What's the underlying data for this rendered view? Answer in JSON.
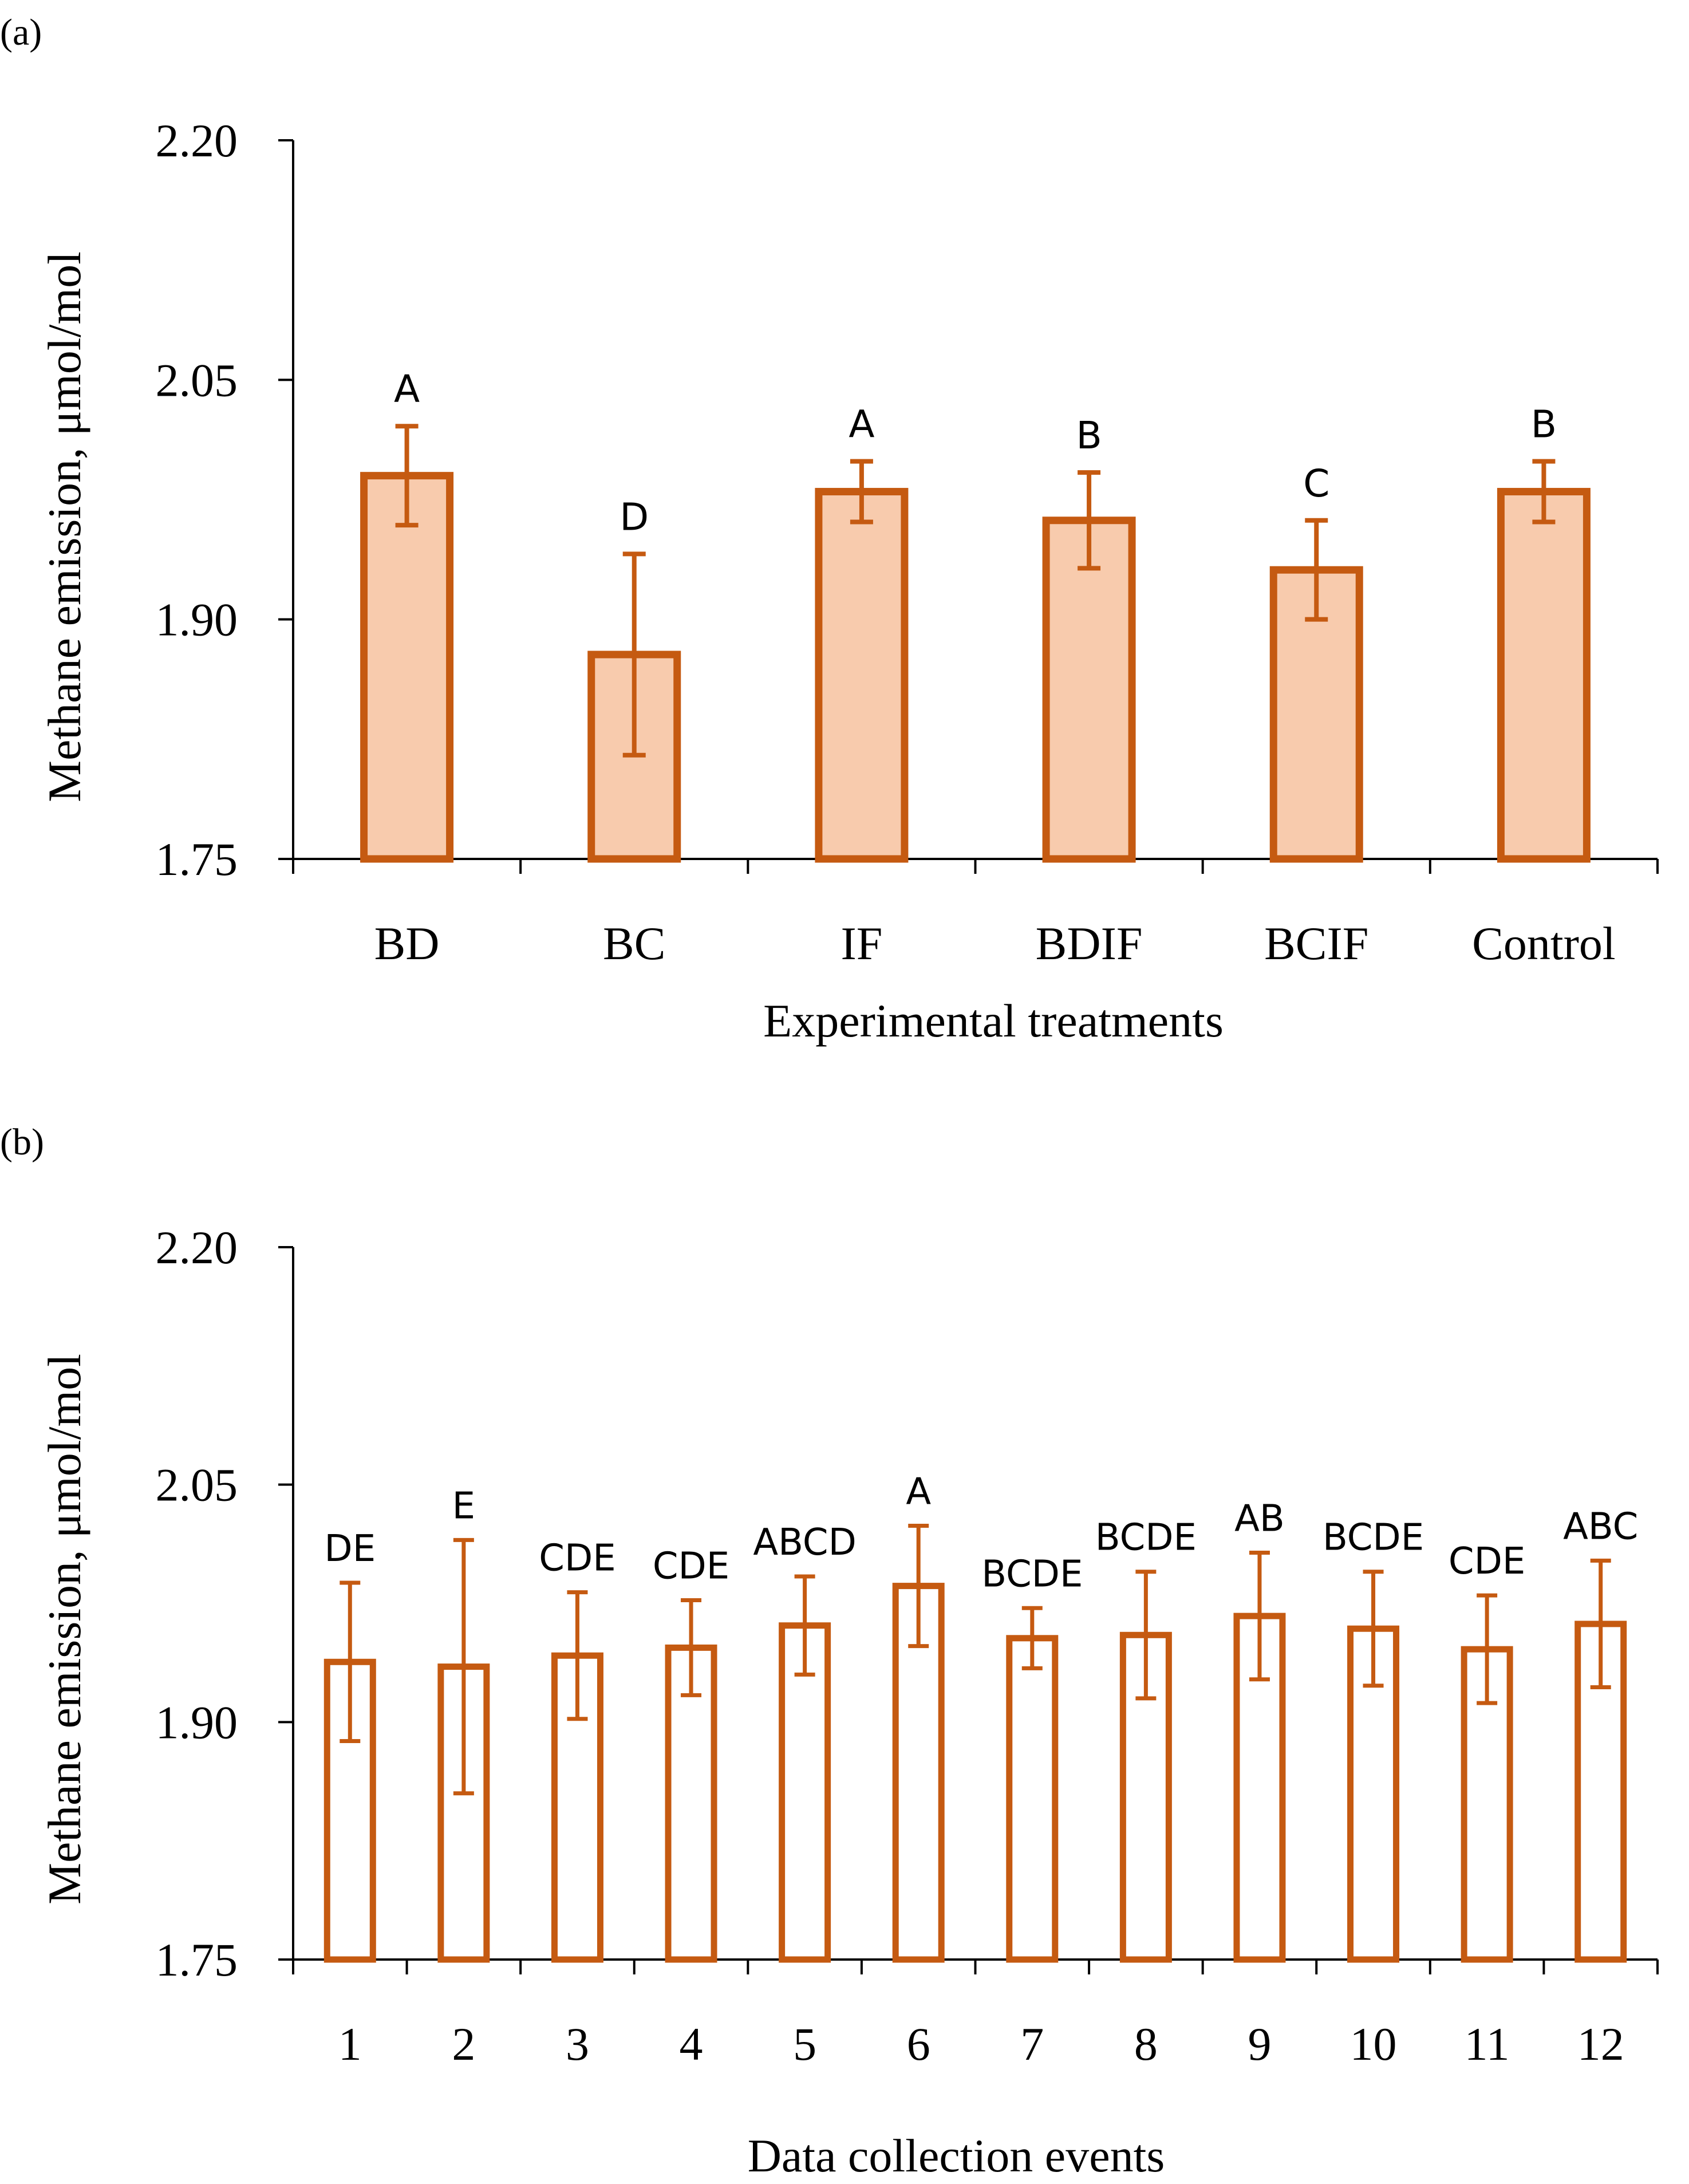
{
  "chart_data": [
    {
      "panel": "(a)",
      "type": "bar",
      "title": "",
      "xlabel": "Experimental treatments",
      "ylabel": "Methane emission, μmol/mol",
      "ylim": [
        1.75,
        2.2
      ],
      "yticks": [
        "1.75",
        "1.90",
        "2.05",
        "2.20"
      ],
      "grid": false,
      "categories": [
        "BD",
        "BC",
        "IF",
        "BDIF",
        "BCIF",
        "Control"
      ],
      "values": [
        1.99,
        1.878,
        1.98,
        1.962,
        1.931,
        1.98
      ],
      "error": [
        0.031,
        0.063,
        0.019,
        0.03,
        0.031,
        0.019
      ],
      "letters": [
        "A",
        "D",
        "A",
        "B",
        "C",
        "B"
      ],
      "colors": {
        "fill": "#F8CBAD",
        "stroke": "#C55A11",
        "error": "#C55A11",
        "axis": "#000000"
      }
    },
    {
      "panel": "(b)",
      "type": "bar",
      "title": "",
      "xlabel": "Data collection events",
      "ylabel": "Methane emission, μmol/mol",
      "ylim": [
        1.75,
        2.2
      ],
      "yticks": [
        "1.75",
        "1.90",
        "2.05",
        "2.20"
      ],
      "grid": false,
      "categories": [
        "1",
        "2",
        "3",
        "4",
        "5",
        "6",
        "7",
        "8",
        "9",
        "10",
        "11",
        "12"
      ],
      "values": [
        1.938,
        1.935,
        1.942,
        1.947,
        1.961,
        1.986,
        1.953,
        1.955,
        1.967,
        1.959,
        1.946,
        1.962
      ],
      "error": [
        0.05,
        0.08,
        0.04,
        0.03,
        0.031,
        0.038,
        0.019,
        0.04,
        0.04,
        0.036,
        0.034,
        0.04
      ],
      "letters": [
        "DE",
        "E",
        "CDE",
        "CDE",
        "ABCD",
        "A",
        "BCDE",
        "BCDE",
        "AB",
        "BCDE",
        "CDE",
        "ABC"
      ],
      "colors": {
        "fill": "#FFFFFF",
        "stroke": "#C55A11",
        "error": "#C55A11",
        "axis": "#000000"
      }
    }
  ]
}
